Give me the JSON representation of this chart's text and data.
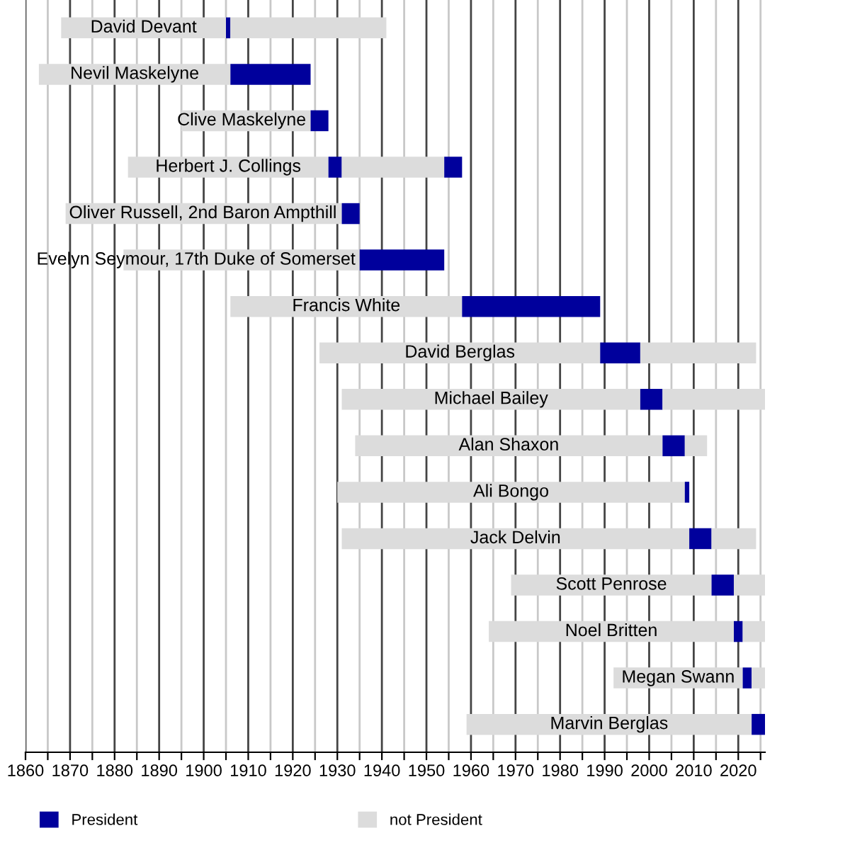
{
  "chart_data": {
    "type": "bar",
    "orientation": "horizontal",
    "categories": [
      "David Devant",
      "Nevil Maskelyne",
      "Clive Maskelyne",
      "Herbert J. Collings",
      "Oliver Russell, 2nd Baron Ampthill",
      "Evelyn Seymour, 17th Duke of Somerset",
      "Francis White",
      "David Berglas",
      "Michael Bailey",
      "Alan Shaxon",
      "Ali Bongo",
      "Jack Delvin",
      "Scott Penrose",
      "Noel Britten",
      "Megan Swann",
      "Marvin Berglas"
    ],
    "series": [
      {
        "name": "not President",
        "color": "#dcdcdc",
        "base": [
          1868,
          1863,
          1895,
          1883,
          1869,
          1882,
          1906,
          1926,
          1931,
          1934,
          1930,
          1931,
          1969,
          1964,
          1992,
          1959
        ],
        "values": [
          37,
          43,
          29,
          45,
          62,
          53,
          52,
          63,
          67,
          69,
          78,
          78,
          45,
          55,
          29,
          64
        ]
      },
      {
        "name": "President",
        "color": "#00009c",
        "base": [
          1905,
          1906,
          1924,
          1928,
          1931,
          1935,
          1958,
          1989,
          1998,
          2003,
          2008,
          2009,
          2014,
          2019,
          2021,
          2023
        ],
        "values": [
          1,
          18,
          4,
          3,
          4,
          19,
          31,
          9,
          5,
          5,
          1,
          5,
          5,
          2,
          2,
          3
        ]
      },
      {
        "color": "#dcdcdc",
        "base": [
          1906,
          null,
          null,
          1931,
          null,
          null,
          null,
          1998,
          2003,
          2008,
          null,
          2014,
          2019,
          2021,
          2023,
          null
        ],
        "values": [
          35,
          null,
          null,
          23,
          null,
          null,
          null,
          26,
          23,
          5,
          null,
          10,
          7,
          5,
          3,
          null
        ]
      },
      {
        "color": "#00009c",
        "base": [
          null,
          null,
          null,
          1954,
          null,
          null,
          null,
          null,
          null,
          null,
          null,
          null,
          null,
          null,
          null,
          null
        ],
        "values": [
          null,
          null,
          null,
          4,
          null,
          null,
          null,
          null,
          null,
          null,
          null,
          null,
          null,
          null,
          null,
          null
        ]
      }
    ],
    "xlim": [
      1860,
      2026
    ],
    "xticks": [
      1860,
      {
        "value": 1865,
        "label": null
      },
      1870,
      {
        "value": 1875,
        "label": null
      },
      1880,
      {
        "value": 1885,
        "label": null
      },
      1890,
      {
        "value": 1895,
        "label": null
      },
      1900,
      {
        "value": 1905,
        "label": null
      },
      1910,
      {
        "value": 1915,
        "label": null
      },
      1920,
      {
        "value": 1925,
        "label": null
      },
      1930,
      {
        "value": 1935,
        "label": null
      },
      1940,
      {
        "value": 1945,
        "label": null
      },
      1950,
      {
        "value": 1955,
        "label": null
      },
      1960,
      {
        "value": 1965,
        "label": null
      },
      1970,
      {
        "value": 1975,
        "label": null
      },
      1980,
      {
        "value": 1985,
        "label": null
      },
      1990,
      {
        "value": 1995,
        "label": null
      },
      2000,
      {
        "value": 2005,
        "label": null
      },
      2010,
      {
        "value": 2015,
        "label": null
      },
      2020,
      {
        "value": 2025,
        "label": null
      }
    ],
    "grid": "x",
    "legend": "bottom",
    "tick_labels": "x"
  }
}
